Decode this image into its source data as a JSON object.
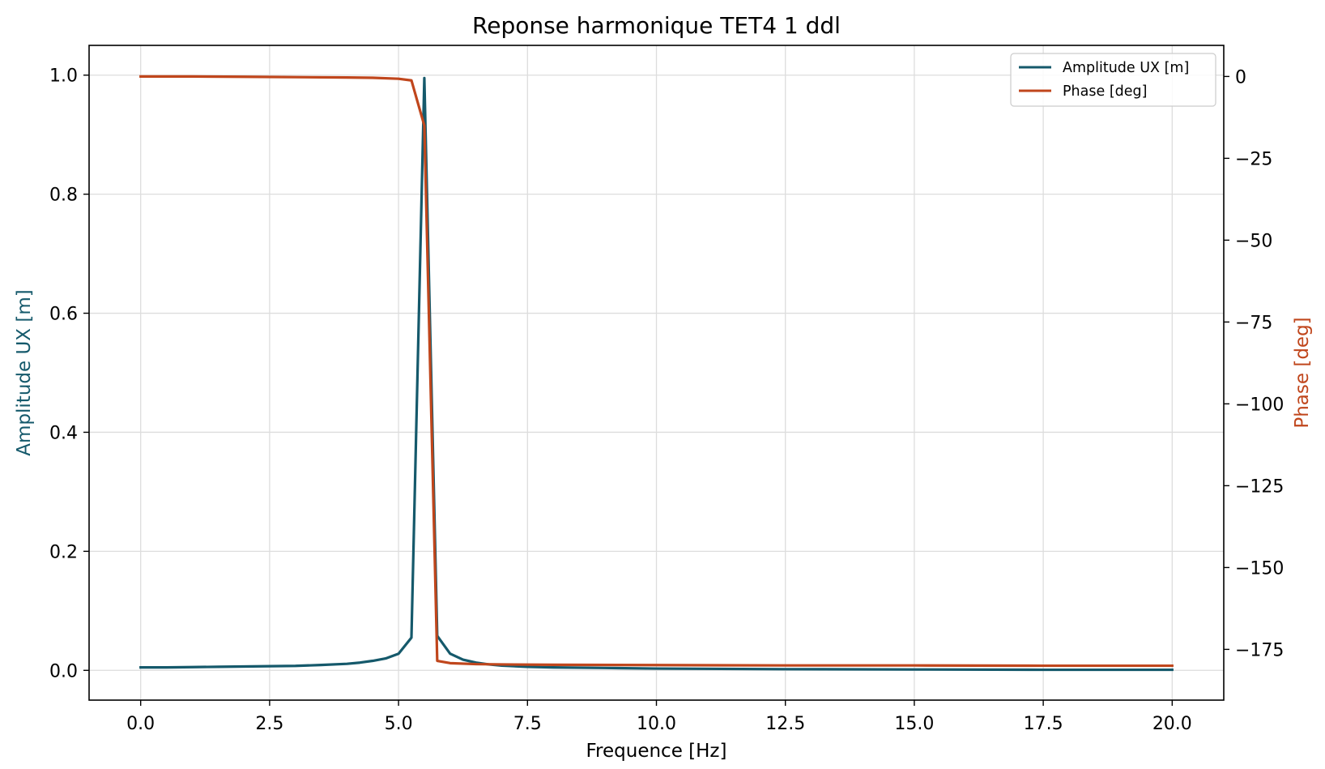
{
  "chart_data": {
    "type": "line",
    "title": "Reponse harmonique TET4 1 ddl",
    "xlabel": "Frequence [Hz]",
    "ylabel_left": "Amplitude UX [m]",
    "ylabel_right": "Phase [deg]",
    "xlim": [
      -1,
      21
    ],
    "ylim_left": [
      -0.05,
      1.05
    ],
    "ylim_right": [
      -190.5,
      9.5
    ],
    "x_ticks": [
      0,
      2.5,
      5,
      7.5,
      10,
      12.5,
      15,
      17.5,
      20
    ],
    "x_tick_labels": [
      "0.0",
      "2.5",
      "5.0",
      "7.5",
      "10.0",
      "12.5",
      "15.0",
      "17.5",
      "20.0"
    ],
    "y_left_ticks": [
      0,
      0.2,
      0.4,
      0.6,
      0.8,
      1.0
    ],
    "y_left_tick_labels": [
      "0.0",
      "0.2",
      "0.4",
      "0.6",
      "0.8",
      "1.0"
    ],
    "y_right_ticks": [
      0,
      -25,
      -50,
      -75,
      -100,
      -125,
      -150,
      -175
    ],
    "y_right_tick_labels": [
      "0",
      "−25",
      "−50",
      "−75",
      "−100",
      "−125",
      "−150",
      "−175"
    ],
    "grid": true,
    "legend_position": "top-right",
    "series": [
      {
        "name": "Amplitude UX [m]",
        "axis": "left",
        "color": "#15596b",
        "x": [
          0,
          0.5,
          1,
          1.5,
          2,
          2.5,
          3,
          3.5,
          4,
          4.25,
          4.5,
          4.75,
          5,
          5.25,
          5.5,
          5.75,
          6,
          6.25,
          6.5,
          6.75,
          7,
          7.5,
          8,
          9,
          10,
          12.5,
          15,
          17.5,
          20
        ],
        "y": [
          0.005,
          0.005,
          0.0055,
          0.006,
          0.0065,
          0.007,
          0.0075,
          0.009,
          0.011,
          0.013,
          0.016,
          0.02,
          0.028,
          0.055,
          0.995,
          0.058,
          0.028,
          0.018,
          0.013,
          0.01,
          0.008,
          0.006,
          0.005,
          0.004,
          0.003,
          0.002,
          0.0015,
          0.001,
          0.001
        ]
      },
      {
        "name": "Phase [deg]",
        "axis": "right",
        "color": "#c0461c",
        "x": [
          0,
          1,
          2,
          3,
          4,
          4.5,
          5,
          5.25,
          5.5,
          5.75,
          6,
          6.5,
          7,
          8,
          10,
          12.5,
          15,
          17.5,
          20
        ],
        "y": [
          0,
          0,
          -0.1,
          -0.2,
          -0.3,
          -0.4,
          -0.7,
          -1.2,
          -15,
          -178.5,
          -179.2,
          -179.5,
          -179.6,
          -179.7,
          -179.8,
          -179.9,
          -179.9,
          -180,
          -180
        ]
      }
    ]
  }
}
